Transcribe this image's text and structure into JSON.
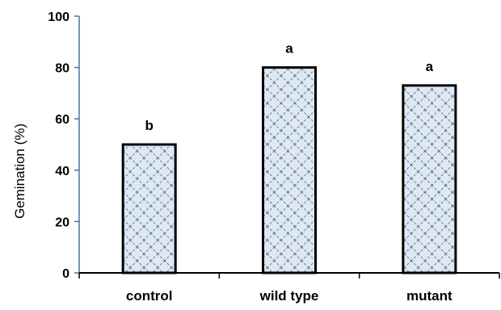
{
  "chart_data": {
    "type": "bar",
    "categories": [
      "control",
      "wild type",
      "mutant"
    ],
    "values": [
      50,
      80,
      73
    ],
    "significance_letters": [
      "b",
      "a",
      "a"
    ],
    "title": "",
    "xlabel": "",
    "ylabel": "Gemination (%)",
    "ylim": [
      0,
      100
    ],
    "yticks": [
      "0",
      "20",
      "40",
      "60",
      "80",
      "100"
    ],
    "grid": false,
    "legend": "none",
    "colors": {
      "bar_fill": "#dce8f5",
      "bar_stroke": "#000000",
      "axis_y": "#4a6fa5",
      "axis_x": "#000000",
      "hatch": "#333333"
    }
  }
}
